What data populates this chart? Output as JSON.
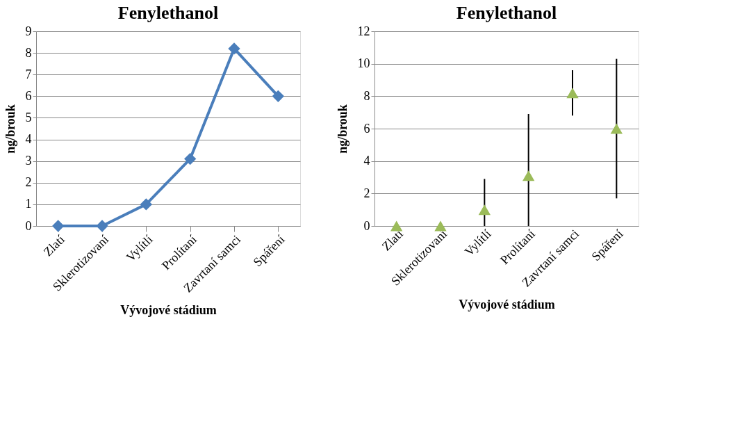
{
  "chart_data": [
    {
      "type": "line",
      "title": "Fenylethanol",
      "xlabel": "Vývojové stádium",
      "ylabel": "ng/brouk",
      "categories": [
        "Zlatí",
        "Sklerotizovaní",
        "Vylítlí",
        "Prolítaní",
        "Zavrtaní samci",
        "Spáření"
      ],
      "series": [
        {
          "color": "#4a7ebb",
          "values": [
            0,
            0,
            1,
            3.1,
            8.2,
            6.0
          ]
        }
      ],
      "ylim": [
        0,
        9
      ],
      "yticks": [
        0,
        1,
        2,
        3,
        4,
        5,
        6,
        7,
        8,
        9
      ],
      "grid": "y",
      "marker": "diamond",
      "line_style": "solid"
    },
    {
      "type": "scatter",
      "title": "Fenylethanol",
      "xlabel": "Vývojové stádium",
      "ylabel": "ng/brouk",
      "categories": [
        "Zlatí",
        "Sklerotizovaní",
        "Vylítlí",
        "Prolítaní",
        "Zavrtaní samci",
        "Spáření"
      ],
      "series": [
        {
          "color": "#9bbb59",
          "values": [
            0,
            0,
            1,
            3.1,
            8.2,
            6.0
          ],
          "errors": [
            null,
            null,
            [
              0,
              2.9
            ],
            [
              0,
              6.9
            ],
            [
              6.8,
              9.6
            ],
            [
              1.7,
              10.3
            ]
          ]
        }
      ],
      "ylim": [
        0,
        12
      ],
      "yticks": [
        0,
        2,
        4,
        6,
        8,
        10,
        12
      ],
      "grid": "y",
      "marker": "triangle"
    }
  ]
}
